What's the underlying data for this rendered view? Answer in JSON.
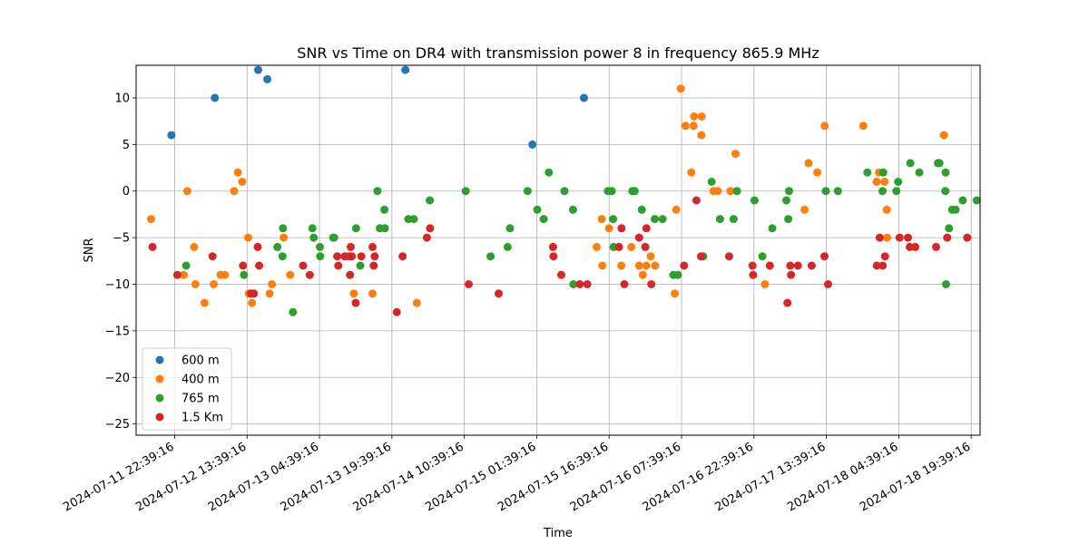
{
  "chart_data": {
    "type": "scatter",
    "title": "SNR vs Time on DR4 with transmission power 8 in frequency 865.9 MHz",
    "xlabel": "Time",
    "ylabel": "SNR",
    "x_axis_type": "datetime",
    "xlim": [
      "2024-07-11 14:40",
      "2024-07-18 21:30"
    ],
    "ylim": [
      -26.2,
      13.5
    ],
    "x_ticks": [
      "2024-07-11 22:39:16",
      "2024-07-12 13:39:16",
      "2024-07-13 04:39:16",
      "2024-07-13 19:39:16",
      "2024-07-14 10:39:16",
      "2024-07-15 01:39:16",
      "2024-07-15 16:39:16",
      "2024-07-16 07:39:16",
      "2024-07-16 22:39:16",
      "2024-07-17 13:39:16",
      "2024-07-18 04:39:16",
      "2024-07-18 19:39:16"
    ],
    "y_ticks": [
      -25,
      -20,
      -15,
      -10,
      -5,
      0,
      5,
      10
    ],
    "grid": true,
    "legend_position": "lower-left",
    "series": [
      {
        "name": "600 m",
        "color": "#1f77b4",
        "points": [
          [
            "2024-07-11 21:59",
            6
          ],
          [
            "2024-07-12 06:58",
            10
          ],
          [
            "2024-07-12 15:57",
            13
          ],
          [
            "2024-07-12 17:51",
            12
          ],
          [
            "2024-07-13 22:27",
            13
          ],
          [
            "2024-07-15 00:46",
            5
          ],
          [
            "2024-07-15 11:26",
            10
          ]
        ]
      },
      {
        "name": "400 m",
        "color": "#ff7f0e",
        "points": [
          [
            "2024-07-11 17:46",
            -3
          ],
          [
            "2024-07-12 00:32",
            -9
          ],
          [
            "2024-07-12 01:16",
            0
          ],
          [
            "2024-07-12 02:41",
            -6
          ],
          [
            "2024-07-12 02:56",
            -10
          ],
          [
            "2024-07-12 04:51",
            -12
          ],
          [
            "2024-07-12 06:44",
            -10
          ],
          [
            "2024-07-12 08:10",
            -9
          ],
          [
            "2024-07-12 09:04",
            -9
          ],
          [
            "2024-07-12 10:58",
            0
          ],
          [
            "2024-07-12 11:44",
            2
          ],
          [
            "2024-07-12 12:39",
            1
          ],
          [
            "2024-07-12 13:53",
            -5
          ],
          [
            "2024-07-12 14:01",
            -11
          ],
          [
            "2024-07-12 14:39",
            -12
          ],
          [
            "2024-07-12 18:19",
            -11
          ],
          [
            "2024-07-12 18:48",
            -10
          ],
          [
            "2024-07-12 21:14",
            -5
          ],
          [
            "2024-07-12 22:35",
            -9
          ],
          [
            "2024-07-13 11:46",
            -11
          ],
          [
            "2024-07-13 15:38",
            -11
          ],
          [
            "2024-07-14 00:49",
            -12
          ],
          [
            "2024-07-15 14:04",
            -6
          ],
          [
            "2024-07-15 15:08",
            -3
          ],
          [
            "2024-07-15 15:14",
            -8
          ],
          [
            "2024-07-15 16:39",
            -4
          ],
          [
            "2024-07-15 19:11",
            -8
          ],
          [
            "2024-07-15 21:15",
            -6
          ],
          [
            "2024-07-15 22:52",
            -8
          ],
          [
            "2024-07-15 23:37",
            -9
          ],
          [
            "2024-07-16 00:20",
            -8
          ],
          [
            "2024-07-16 01:17",
            -7
          ],
          [
            "2024-07-16 02:11",
            -8
          ],
          [
            "2024-07-16 06:15",
            -11
          ],
          [
            "2024-07-16 06:34",
            -2
          ],
          [
            "2024-07-16 07:30",
            11
          ],
          [
            "2024-07-16 08:29",
            7
          ],
          [
            "2024-07-16 09:41",
            2
          ],
          [
            "2024-07-16 10:09",
            7
          ],
          [
            "2024-07-16 10:16",
            8
          ],
          [
            "2024-07-16 11:50",
            8
          ],
          [
            "2024-07-16 11:46",
            6
          ],
          [
            "2024-07-16 14:16",
            0
          ],
          [
            "2024-07-16 15:10",
            0
          ],
          [
            "2024-07-16 17:48",
            0
          ],
          [
            "2024-07-16 18:50",
            4
          ],
          [
            "2024-07-17 00:56",
            -10
          ],
          [
            "2024-07-17 09:09",
            -2
          ],
          [
            "2024-07-17 09:58",
            3
          ],
          [
            "2024-07-17 11:47",
            2
          ],
          [
            "2024-07-17 13:19",
            7
          ],
          [
            "2024-07-17 21:18",
            7
          ],
          [
            "2024-07-18 00:04",
            1
          ],
          [
            "2024-07-18 00:33",
            2
          ],
          [
            "2024-07-18 01:42",
            1
          ],
          [
            "2024-07-18 02:11",
            -2
          ],
          [
            "2024-07-18 02:14",
            -5
          ],
          [
            "2024-07-18 14:01",
            6
          ]
        ]
      },
      {
        "name": "765 m",
        "color": "#2ca02c",
        "points": [
          [
            "2024-07-12 01:02",
            -8
          ],
          [
            "2024-07-12 13:01",
            -9
          ],
          [
            "2024-07-12 19:56",
            -6
          ],
          [
            "2024-07-12 20:59",
            -7
          ],
          [
            "2024-07-12 21:05",
            -4
          ],
          [
            "2024-07-12 23:09",
            -13
          ],
          [
            "2024-07-13 03:10",
            -4
          ],
          [
            "2024-07-13 03:27",
            -5
          ],
          [
            "2024-07-13 04:44",
            -6
          ],
          [
            "2024-07-13 04:47",
            -7
          ],
          [
            "2024-07-13 07:30",
            -5
          ],
          [
            "2024-07-13 07:41",
            -5
          ],
          [
            "2024-07-13 12:14",
            -4
          ],
          [
            "2024-07-13 13:06",
            -8
          ],
          [
            "2024-07-13 16:39",
            0
          ],
          [
            "2024-07-13 17:10",
            -4
          ],
          [
            "2024-07-13 18:06",
            -2
          ],
          [
            "2024-07-13 18:12",
            -4
          ],
          [
            "2024-07-13 23:04",
            -3
          ],
          [
            "2024-07-14 00:11",
            -3
          ],
          [
            "2024-07-14 03:30",
            -1
          ],
          [
            "2024-07-14 10:57",
            0
          ],
          [
            "2024-07-14 16:06",
            -7
          ],
          [
            "2024-07-14 19:38",
            -6
          ],
          [
            "2024-07-14 20:07",
            -4
          ],
          [
            "2024-07-14 23:46",
            0
          ],
          [
            "2024-07-15 01:46",
            -2
          ],
          [
            "2024-07-15 03:06",
            -3
          ],
          [
            "2024-07-15 04:10",
            2
          ],
          [
            "2024-07-15 07:24",
            0
          ],
          [
            "2024-07-15 09:10",
            -2
          ],
          [
            "2024-07-15 09:14",
            -10
          ],
          [
            "2024-07-15 16:24",
            0
          ],
          [
            "2024-07-15 17:12",
            0
          ],
          [
            "2024-07-15 17:29",
            -3
          ],
          [
            "2024-07-15 17:35",
            -6
          ],
          [
            "2024-07-15 21:29",
            0
          ],
          [
            "2024-07-15 21:57",
            0
          ],
          [
            "2024-07-15 23:25",
            -2
          ],
          [
            "2024-07-16 02:06",
            -3
          ],
          [
            "2024-07-16 03:43",
            -3
          ],
          [
            "2024-07-16 05:58",
            -9
          ],
          [
            "2024-07-16 06:54",
            -9
          ],
          [
            "2024-07-16 12:07",
            -7
          ],
          [
            "2024-07-16 13:54",
            1
          ],
          [
            "2024-07-16 15:37",
            -3
          ],
          [
            "2024-07-16 18:27",
            -3
          ],
          [
            "2024-07-16 19:08",
            0
          ],
          [
            "2024-07-16 22:46",
            -1
          ],
          [
            "2024-07-17 00:24",
            -7
          ],
          [
            "2024-07-17 02:27",
            -4
          ],
          [
            "2024-07-17 05:22",
            -1
          ],
          [
            "2024-07-17 05:46",
            -3
          ],
          [
            "2024-07-17 05:56",
            0
          ],
          [
            "2024-07-17 13:32",
            0
          ],
          [
            "2024-07-17 16:02",
            0
          ],
          [
            "2024-07-17 22:09",
            2
          ],
          [
            "2024-07-18 01:25",
            2
          ],
          [
            "2024-07-18 01:17",
            0
          ],
          [
            "2024-07-18 04:09",
            0
          ],
          [
            "2024-07-18 04:32",
            1
          ],
          [
            "2024-07-18 07:03",
            3
          ],
          [
            "2024-07-18 08:54",
            2
          ],
          [
            "2024-07-18 12:46",
            3
          ],
          [
            "2024-07-18 13:05",
            3
          ],
          [
            "2024-07-18 14:21",
            2
          ],
          [
            "2024-07-18 14:18",
            0
          ],
          [
            "2024-07-18 14:27",
            -10
          ],
          [
            "2024-07-18 15:04",
            -4
          ],
          [
            "2024-07-18 15:43",
            -2
          ],
          [
            "2024-07-18 16:26",
            -2
          ],
          [
            "2024-07-18 17:54",
            -1
          ],
          [
            "2024-07-18 20:48",
            -1
          ]
        ]
      },
      {
        "name": "1.5 Km",
        "color": "#d62728",
        "points": [
          [
            "2024-07-11 18:04",
            -6
          ],
          [
            "2024-07-11 23:12",
            -9
          ],
          [
            "2024-07-12 06:30",
            -7
          ],
          [
            "2024-07-12 12:49",
            -8
          ],
          [
            "2024-07-12 14:28",
            -11
          ],
          [
            "2024-07-12 15:04",
            -11
          ],
          [
            "2024-07-12 15:52",
            -6
          ],
          [
            "2024-07-12 16:10",
            -8
          ],
          [
            "2024-07-13 01:15",
            -8
          ],
          [
            "2024-07-13 02:39",
            -9
          ],
          [
            "2024-07-13 08:20",
            -7
          ],
          [
            "2024-07-13 08:33",
            -8
          ],
          [
            "2024-07-13 09:53",
            -7
          ],
          [
            "2024-07-13 10:45",
            -7
          ],
          [
            "2024-07-13 10:59",
            -9
          ],
          [
            "2024-07-13 11:08",
            -6
          ],
          [
            "2024-07-13 11:20",
            -7
          ],
          [
            "2024-07-13 12:10",
            -12
          ],
          [
            "2024-07-13 13:20",
            -7
          ],
          [
            "2024-07-13 15:38",
            -6
          ],
          [
            "2024-07-13 15:53",
            -8
          ],
          [
            "2024-07-13 16:05",
            -7
          ],
          [
            "2024-07-13 20:41",
            -13
          ],
          [
            "2024-07-13 21:53",
            -7
          ],
          [
            "2024-07-14 02:54",
            -5
          ],
          [
            "2024-07-14 03:34",
            -4
          ],
          [
            "2024-07-14 11:34",
            -10
          ],
          [
            "2024-07-14 17:46",
            -11
          ],
          [
            "2024-07-15 05:02",
            -6
          ],
          [
            "2024-07-15 05:07",
            -7
          ],
          [
            "2024-07-15 06:45",
            -9
          ],
          [
            "2024-07-15 10:35",
            -10
          ],
          [
            "2024-07-15 12:08",
            -10
          ],
          [
            "2024-07-15 18:42",
            -6
          ],
          [
            "2024-07-15 19:13",
            -4
          ],
          [
            "2024-07-15 19:48",
            -10
          ],
          [
            "2024-07-15 22:52",
            -5
          ],
          [
            "2024-07-16 00:23",
            -4
          ],
          [
            "2024-07-16 00:09",
            -6
          ],
          [
            "2024-07-16 01:23",
            -10
          ],
          [
            "2024-07-16 08:11",
            -8
          ],
          [
            "2024-07-16 10:44",
            -1
          ],
          [
            "2024-07-16 11:41",
            -7
          ],
          [
            "2024-07-16 17:30",
            -7
          ],
          [
            "2024-07-16 22:29",
            -9
          ],
          [
            "2024-07-16 22:21",
            -8
          ],
          [
            "2024-07-17 01:57",
            -8
          ],
          [
            "2024-07-17 05:35",
            -12
          ],
          [
            "2024-07-17 06:10",
            -8
          ],
          [
            "2024-07-17 06:21",
            -9
          ],
          [
            "2024-07-17 07:45",
            -8
          ],
          [
            "2024-07-17 10:37",
            -8
          ],
          [
            "2024-07-17 13:15",
            -7
          ],
          [
            "2024-07-17 14:01",
            -10
          ],
          [
            "2024-07-18 00:06",
            -8
          ],
          [
            "2024-07-18 00:42",
            -5
          ],
          [
            "2024-07-18 01:20",
            -8
          ],
          [
            "2024-07-18 01:48",
            -7
          ],
          [
            "2024-07-18 04:50",
            -5
          ],
          [
            "2024-07-18 06:33",
            -5
          ],
          [
            "2024-07-18 06:56",
            -6
          ],
          [
            "2024-07-18 08:03",
            -6
          ],
          [
            "2024-07-18 12:23",
            -6
          ],
          [
            "2024-07-18 14:42",
            -5
          ],
          [
            "2024-07-18 18:51",
            -5
          ]
        ]
      }
    ]
  }
}
